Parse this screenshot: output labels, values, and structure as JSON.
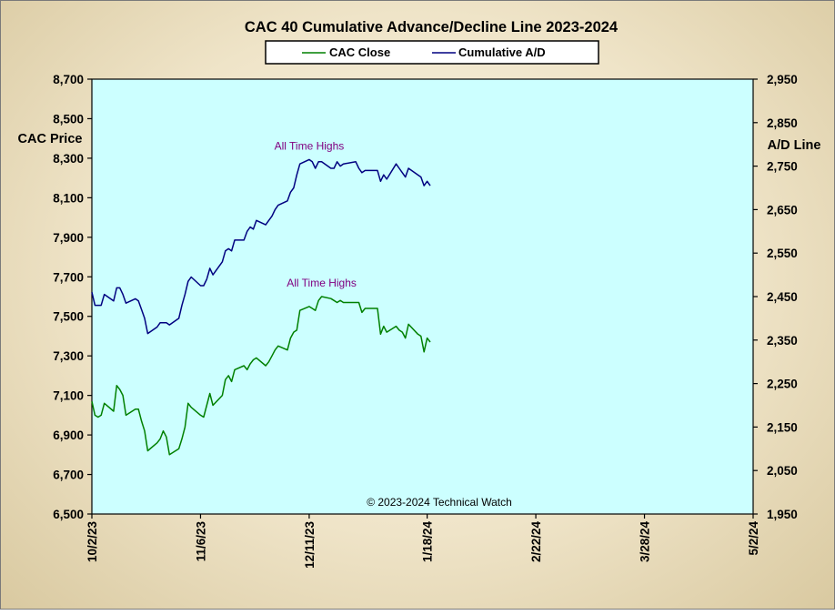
{
  "chart_data": {
    "type": "line",
    "title": "CAC 40 Cumulative Advance/Decline Line 2023-2024",
    "ylabel_left": "CAC Price",
    "ylabel_right": "A/D Line",
    "copyright": "© 2023-2024 Technical Watch",
    "colors": {
      "plot_bg": "#ccffff",
      "cac_close": "#008000",
      "cumulative_ad": "#000080",
      "annotation": "#800080"
    },
    "grid": false,
    "legend_position": "top-center",
    "x_axis": {
      "type": "date",
      "range": [
        "2023-10-02",
        "2024-05-02"
      ],
      "ticks": [
        {
          "date": "2023-10-02",
          "label": "10/2/23"
        },
        {
          "date": "2023-11-06",
          "label": "11/6/23"
        },
        {
          "date": "2023-12-11",
          "label": "12/11/23"
        },
        {
          "date": "2024-01-18",
          "label": "1/18/24"
        },
        {
          "date": "2024-02-22",
          "label": "2/22/24"
        },
        {
          "date": "2024-03-28",
          "label": "3/28/24"
        },
        {
          "date": "2024-05-02",
          "label": "5/2/24"
        }
      ]
    },
    "y_left": {
      "range": [
        6500,
        8700
      ],
      "ticks": [
        {
          "value": 6500,
          "label": "6,500"
        },
        {
          "value": 6700,
          "label": "6,700"
        },
        {
          "value": 6900,
          "label": "6,900"
        },
        {
          "value": 7100,
          "label": "7,100"
        },
        {
          "value": 7300,
          "label": "7,300"
        },
        {
          "value": 7500,
          "label": "7,500"
        },
        {
          "value": 7700,
          "label": "7,700"
        },
        {
          "value": 7900,
          "label": "7,900"
        },
        {
          "value": 8100,
          "label": "8,100"
        },
        {
          "value": 8300,
          "label": "8,300"
        },
        {
          "value": 8500,
          "label": "8,500"
        },
        {
          "value": 8700,
          "label": "8,700"
        }
      ]
    },
    "y_right": {
      "range": [
        1950,
        2950
      ],
      "ticks": [
        {
          "value": 1950,
          "label": "1,950"
        },
        {
          "value": 2050,
          "label": "2,050"
        },
        {
          "value": 2150,
          "label": "2,150"
        },
        {
          "value": 2250,
          "label": "2,250"
        },
        {
          "value": 2350,
          "label": "2,350"
        },
        {
          "value": 2450,
          "label": "2,450"
        },
        {
          "value": 2550,
          "label": "2,550"
        },
        {
          "value": 2650,
          "label": "2,650"
        },
        {
          "value": 2750,
          "label": "2,750"
        },
        {
          "value": 2850,
          "label": "2,850"
        },
        {
          "value": 2950,
          "label": "2,950"
        }
      ]
    },
    "series": [
      {
        "name": "CAC Close",
        "axis": "left",
        "points": [
          [
            "2023-10-02",
            7070
          ],
          [
            "2023-10-03",
            7000
          ],
          [
            "2023-10-04",
            6990
          ],
          [
            "2023-10-05",
            7000
          ],
          [
            "2023-10-06",
            7060
          ],
          [
            "2023-10-09",
            7020
          ],
          [
            "2023-10-10",
            7150
          ],
          [
            "2023-10-11",
            7130
          ],
          [
            "2023-10-12",
            7100
          ],
          [
            "2023-10-13",
            7000
          ],
          [
            "2023-10-16",
            7030
          ],
          [
            "2023-10-17",
            7030
          ],
          [
            "2023-10-18",
            6970
          ],
          [
            "2023-10-19",
            6920
          ],
          [
            "2023-10-20",
            6820
          ],
          [
            "2023-10-23",
            6860
          ],
          [
            "2023-10-24",
            6880
          ],
          [
            "2023-10-25",
            6920
          ],
          [
            "2023-10-26",
            6890
          ],
          [
            "2023-10-27",
            6800
          ],
          [
            "2023-10-30",
            6830
          ],
          [
            "2023-10-31",
            6880
          ],
          [
            "2023-11-01",
            6940
          ],
          [
            "2023-11-02",
            7060
          ],
          [
            "2023-11-03",
            7040
          ],
          [
            "2023-11-06",
            7000
          ],
          [
            "2023-11-07",
            6990
          ],
          [
            "2023-11-08",
            7050
          ],
          [
            "2023-11-09",
            7110
          ],
          [
            "2023-11-10",
            7050
          ],
          [
            "2023-11-13",
            7100
          ],
          [
            "2023-11-14",
            7180
          ],
          [
            "2023-11-15",
            7200
          ],
          [
            "2023-11-16",
            7170
          ],
          [
            "2023-11-17",
            7230
          ],
          [
            "2023-11-20",
            7250
          ],
          [
            "2023-11-21",
            7230
          ],
          [
            "2023-11-22",
            7260
          ],
          [
            "2023-11-23",
            7280
          ],
          [
            "2023-11-24",
            7290
          ],
          [
            "2023-11-27",
            7250
          ],
          [
            "2023-11-28",
            7270
          ],
          [
            "2023-11-29",
            7300
          ],
          [
            "2023-11-30",
            7330
          ],
          [
            "2023-12-01",
            7350
          ],
          [
            "2023-12-04",
            7330
          ],
          [
            "2023-12-05",
            7390
          ],
          [
            "2023-12-06",
            7420
          ],
          [
            "2023-12-07",
            7430
          ],
          [
            "2023-12-08",
            7530
          ],
          [
            "2023-12-11",
            7550
          ],
          [
            "2023-12-12",
            7540
          ],
          [
            "2023-12-13",
            7530
          ],
          [
            "2023-12-14",
            7580
          ],
          [
            "2023-12-15",
            7600
          ],
          [
            "2023-12-18",
            7590
          ],
          [
            "2023-12-19",
            7580
          ],
          [
            "2023-12-20",
            7570
          ],
          [
            "2023-12-21",
            7580
          ],
          [
            "2023-12-22",
            7570
          ],
          [
            "2023-12-26",
            7570
          ],
          [
            "2023-12-27",
            7570
          ],
          [
            "2023-12-28",
            7520
          ],
          [
            "2023-12-29",
            7540
          ],
          [
            "2024-01-02",
            7540
          ],
          [
            "2024-01-03",
            7410
          ],
          [
            "2024-01-04",
            7450
          ],
          [
            "2024-01-05",
            7420
          ],
          [
            "2024-01-08",
            7450
          ],
          [
            "2024-01-09",
            7430
          ],
          [
            "2024-01-10",
            7420
          ],
          [
            "2024-01-11",
            7390
          ],
          [
            "2024-01-12",
            7460
          ],
          [
            "2024-01-15",
            7410
          ],
          [
            "2024-01-16",
            7400
          ],
          [
            "2024-01-17",
            7320
          ],
          [
            "2024-01-18",
            7390
          ],
          [
            "2024-01-19",
            7370
          ]
        ]
      },
      {
        "name": "Cumulative A/D",
        "axis": "right",
        "points": [
          [
            "2023-10-02",
            2460
          ],
          [
            "2023-10-03",
            2430
          ],
          [
            "2023-10-04",
            2430
          ],
          [
            "2023-10-05",
            2430
          ],
          [
            "2023-10-06",
            2455
          ],
          [
            "2023-10-09",
            2440
          ],
          [
            "2023-10-10",
            2470
          ],
          [
            "2023-10-11",
            2470
          ],
          [
            "2023-10-12",
            2455
          ],
          [
            "2023-10-13",
            2435
          ],
          [
            "2023-10-16",
            2445
          ],
          [
            "2023-10-17",
            2440
          ],
          [
            "2023-10-18",
            2420
          ],
          [
            "2023-10-19",
            2400
          ],
          [
            "2023-10-20",
            2365
          ],
          [
            "2023-10-23",
            2380
          ],
          [
            "2023-10-24",
            2390
          ],
          [
            "2023-10-25",
            2390
          ],
          [
            "2023-10-26",
            2390
          ],
          [
            "2023-10-27",
            2385
          ],
          [
            "2023-10-30",
            2400
          ],
          [
            "2023-10-31",
            2430
          ],
          [
            "2023-11-01",
            2455
          ],
          [
            "2023-11-02",
            2485
          ],
          [
            "2023-11-03",
            2495
          ],
          [
            "2023-11-06",
            2475
          ],
          [
            "2023-11-07",
            2475
          ],
          [
            "2023-11-08",
            2490
          ],
          [
            "2023-11-09",
            2515
          ],
          [
            "2023-11-10",
            2500
          ],
          [
            "2023-11-13",
            2530
          ],
          [
            "2023-11-14",
            2555
          ],
          [
            "2023-11-15",
            2560
          ],
          [
            "2023-11-16",
            2555
          ],
          [
            "2023-11-17",
            2580
          ],
          [
            "2023-11-20",
            2580
          ],
          [
            "2023-11-21",
            2600
          ],
          [
            "2023-11-22",
            2610
          ],
          [
            "2023-11-23",
            2605
          ],
          [
            "2023-11-24",
            2625
          ],
          [
            "2023-11-27",
            2615
          ],
          [
            "2023-11-28",
            2625
          ],
          [
            "2023-11-29",
            2635
          ],
          [
            "2023-11-30",
            2650
          ],
          [
            "2023-12-01",
            2660
          ],
          [
            "2023-12-04",
            2670
          ],
          [
            "2023-12-05",
            2690
          ],
          [
            "2023-12-06",
            2700
          ],
          [
            "2023-12-07",
            2730
          ],
          [
            "2023-12-08",
            2755
          ],
          [
            "2023-12-11",
            2765
          ],
          [
            "2023-12-12",
            2760
          ],
          [
            "2023-12-13",
            2745
          ],
          [
            "2023-12-14",
            2760
          ],
          [
            "2023-12-15",
            2760
          ],
          [
            "2023-12-18",
            2745
          ],
          [
            "2023-12-19",
            2745
          ],
          [
            "2023-12-20",
            2760
          ],
          [
            "2023-12-21",
            2750
          ],
          [
            "2023-12-22",
            2755
          ],
          [
            "2023-12-26",
            2760
          ],
          [
            "2023-12-27",
            2745
          ],
          [
            "2023-12-28",
            2735
          ],
          [
            "2023-12-29",
            2740
          ],
          [
            "2024-01-02",
            2740
          ],
          [
            "2024-01-03",
            2715
          ],
          [
            "2024-01-04",
            2730
          ],
          [
            "2024-01-05",
            2720
          ],
          [
            "2024-01-08",
            2755
          ],
          [
            "2024-01-09",
            2745
          ],
          [
            "2024-01-10",
            2735
          ],
          [
            "2024-01-11",
            2725
          ],
          [
            "2024-01-12",
            2745
          ],
          [
            "2024-01-15",
            2730
          ],
          [
            "2024-01-16",
            2725
          ],
          [
            "2024-01-17",
            2705
          ],
          [
            "2024-01-18",
            2715
          ],
          [
            "2024-01-19",
            2705
          ]
        ]
      }
    ],
    "annotations": [
      {
        "text": "All Time Highs",
        "series": "Cumulative A/D",
        "date": "2023-12-11",
        "value": 2765
      },
      {
        "text": "All Time Highs",
        "series": "CAC Close",
        "date": "2023-12-15",
        "value": 7600
      }
    ]
  }
}
